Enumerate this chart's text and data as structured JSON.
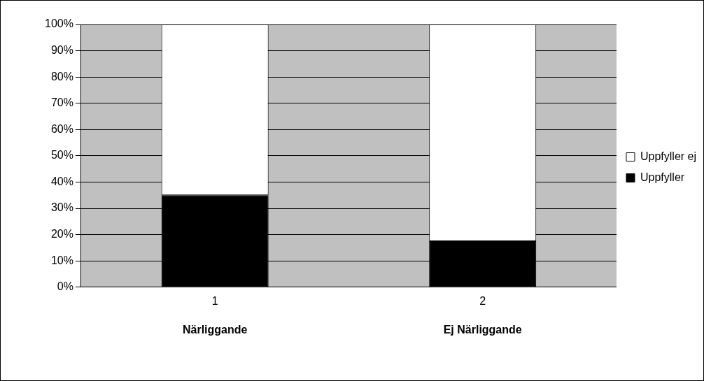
{
  "chart_data": {
    "type": "bar",
    "stacked": true,
    "categories": [
      "1",
      "2"
    ],
    "series": [
      {
        "name": "Uppfyller",
        "color": "#000000",
        "values": [
          35,
          17.5
        ]
      },
      {
        "name": "Uppfyller ej",
        "color": "#ffffff",
        "values": [
          65,
          82.5
        ]
      }
    ],
    "ylim": [
      0,
      100
    ],
    "yticks": [
      {
        "value": 0,
        "label": "0%"
      },
      {
        "value": 10,
        "label": "10%"
      },
      {
        "value": 20,
        "label": "20%"
      },
      {
        "value": 30,
        "label": "30%"
      },
      {
        "value": 40,
        "label": "40%"
      },
      {
        "value": 50,
        "label": "50%"
      },
      {
        "value": 60,
        "label": "60%"
      },
      {
        "value": 70,
        "label": "70%"
      },
      {
        "value": 80,
        "label": "80%"
      },
      {
        "value": 90,
        "label": "90%"
      },
      {
        "value": 100,
        "label": "100%"
      }
    ],
    "grid": "y",
    "legend": "right",
    "annotations": [
      "Närliggande",
      "Ej Närliggande"
    ]
  }
}
